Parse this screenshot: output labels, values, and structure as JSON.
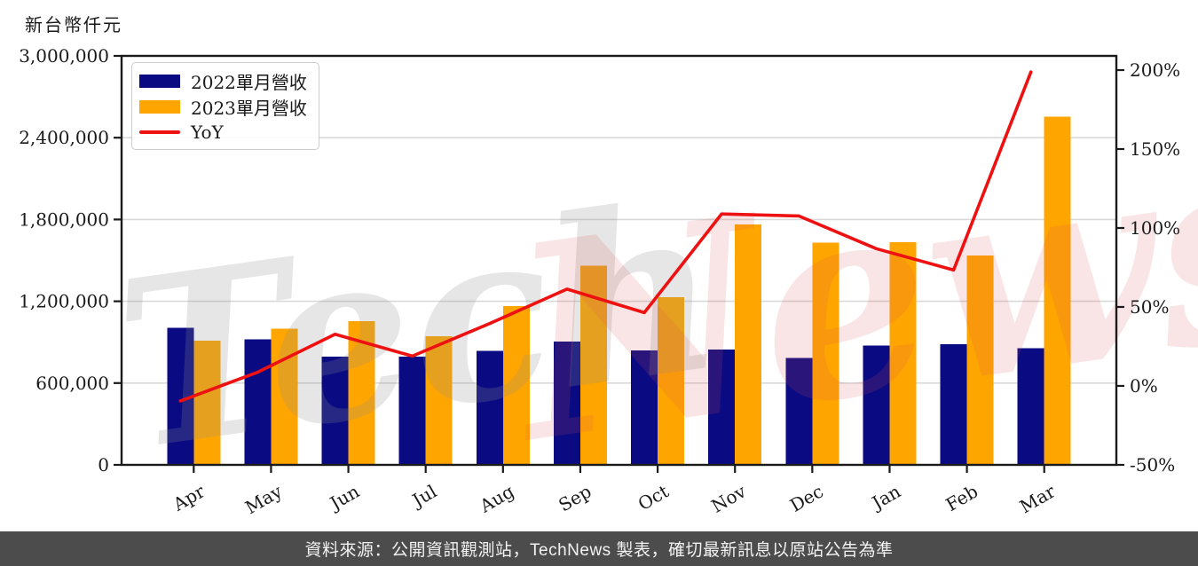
{
  "unit_label": "新台幣仟元",
  "watermark": {
    "part1": "Tech",
    "part2": "News"
  },
  "legend": {
    "items": [
      {
        "label": "2022單月營收",
        "color": "#0a0a82",
        "swatch": "bar"
      },
      {
        "label": "2023單月營收",
        "color": "#ffa500",
        "swatch": "bar"
      },
      {
        "label": "YoY",
        "color": "#ee1111",
        "swatch": "line"
      }
    ]
  },
  "footer": {
    "text": "資料來源：公開資訊觀測站，TechNews 製表，確切最新訊息以原站公告為準"
  },
  "chart_data": {
    "type": "bar",
    "title": "",
    "categories": [
      "Apr",
      "May",
      "Jun",
      "Jul",
      "Aug",
      "Sep",
      "Oct",
      "Nov",
      "Dec",
      "Jan",
      "Feb",
      "Mar"
    ],
    "series": [
      {
        "name": "2022單月營收",
        "type": "bar",
        "axis": "left",
        "color": "#0a0a82",
        "values": [
          1005000,
          920000,
          795000,
          795000,
          835000,
          905000,
          840000,
          845000,
          785000,
          875000,
          885000,
          855000
        ]
      },
      {
        "name": "2023單月營收",
        "type": "bar",
        "axis": "left",
        "color": "#ffa500",
        "values": [
          910000,
          1000000,
          1055000,
          945000,
          1165000,
          1460000,
          1230000,
          1765000,
          1630000,
          1635000,
          1535000,
          2555000
        ]
      },
      {
        "name": "YoY",
        "type": "line",
        "axis": "right",
        "color": "#ee1111",
        "unit": "%",
        "values": [
          -9.5,
          8.7,
          32.7,
          18.9,
          39.5,
          61.3,
          46.4,
          108.9,
          107.6,
          86.9,
          73.4,
          198.8
        ]
      }
    ],
    "left_axis": {
      "label": "新台幣仟元",
      "ticks": [
        0,
        600000,
        1200000,
        1800000,
        2400000,
        3000000
      ],
      "tick_labels": [
        "0",
        "600,000",
        "1,200,000",
        "1,800,000",
        "2,400,000",
        "3,000,000"
      ],
      "range": [
        0,
        3000000
      ]
    },
    "right_axis": {
      "ticks": [
        -50,
        0,
        50,
        100,
        150,
        200
      ],
      "tick_labels": [
        "-50%",
        "0%",
        "50%",
        "100%",
        "150%",
        "200%"
      ],
      "range": [
        -50,
        209
      ]
    },
    "grid": "horizontal",
    "legend_position": "upper-left",
    "x_tick_rotation": -30
  }
}
